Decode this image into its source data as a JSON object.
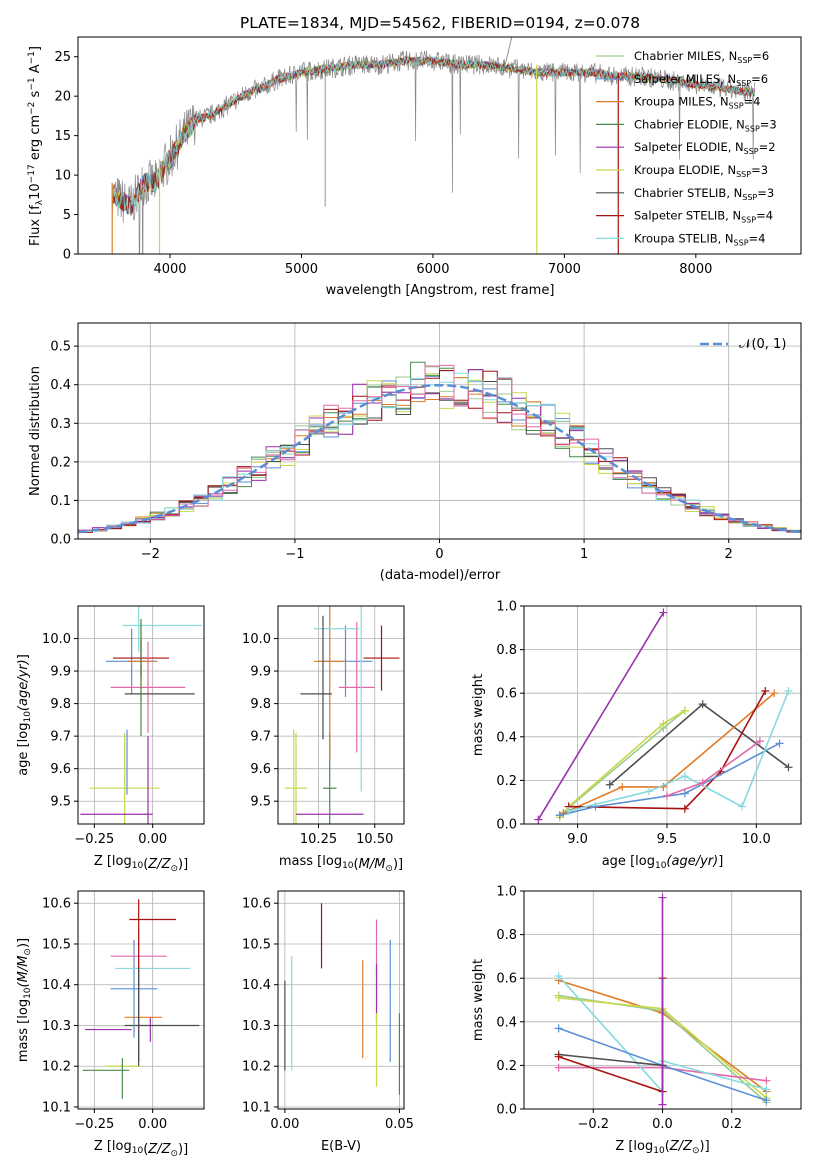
{
  "colors": {
    "c1": "#9ccb8c",
    "c2": "#5a8fd6",
    "c3": "#e07b27",
    "c4": "#4a8a4a",
    "c5": "#9b2fae",
    "c6": "#c8d84a",
    "c7": "#4d4d4d",
    "c8": "#a81010",
    "c9": "#86dadc",
    "pink": "#e06aa8",
    "lime": "#b8e05a",
    "gaussian": "#5a8fd6"
  },
  "chart_data": [
    {
      "id": "spectrum",
      "type": "line",
      "title": "PLATE=1834, MJD=54562, FIBERID=0194, z=0.078",
      "xlabel": "wavelength [Angstrom, rest frame]",
      "ylabel": "Flux [f$_\\lambda$10$^{-17}$ erg cm$^{-2}$ s$^{-1}$ A$^{-1}$]",
      "ylabel_main": "Flux [f",
      "ylabel_sub": "λ",
      "ylabel_rest": "10",
      "ylabel_sup1": "−17",
      "ylabel_mid": " erg cm",
      "ylabel_sup2": "−2",
      "ylabel_mid2": " s",
      "ylabel_sup3": "−1",
      "ylabel_mid3": " A",
      "ylabel_sup4": "−1",
      "ylabel_end": "]",
      "xlim": [
        3300,
        8800
      ],
      "ylim": [
        0,
        27.5
      ],
      "xticks": [
        4000,
        5000,
        6000,
        7000,
        8000
      ],
      "yticks": [
        0,
        5,
        10,
        15,
        20,
        25
      ],
      "continuum": [
        [
          3560,
          7.5
        ],
        [
          3700,
          6
        ],
        [
          3800,
          9
        ],
        [
          3900,
          9
        ],
        [
          3950,
          11
        ],
        [
          4000,
          12
        ],
        [
          4100,
          15
        ],
        [
          4200,
          17
        ],
        [
          4300,
          17.5
        ],
        [
          4400,
          18.5
        ],
        [
          4500,
          19.5
        ],
        [
          4600,
          20.5
        ],
        [
          4700,
          21
        ],
        [
          4800,
          22
        ],
        [
          4900,
          22.5
        ],
        [
          5000,
          23
        ],
        [
          5200,
          23.5
        ],
        [
          5400,
          24
        ],
        [
          5600,
          24
        ],
        [
          5800,
          24.5
        ],
        [
          6000,
          24.5
        ],
        [
          6200,
          24
        ],
        [
          6400,
          24
        ],
        [
          6600,
          23.5
        ],
        [
          6800,
          23
        ],
        [
          7000,
          23
        ],
        [
          7200,
          23
        ],
        [
          7400,
          22.5
        ],
        [
          7600,
          22.5
        ],
        [
          7800,
          22
        ],
        [
          8000,
          21.5
        ],
        [
          8200,
          21
        ],
        [
          8400,
          20.5
        ]
      ],
      "legend": [
        {
          "name": "Chabrier MILES, N",
          "sub": "SSP",
          "val": "=6",
          "color": "#9ccb8c"
        },
        {
          "name": "Salpeter MILES, N",
          "sub": "SSP",
          "val": "=6",
          "color": "#5a8fd6"
        },
        {
          "name": "Kroupa MILES, N",
          "sub": "SSP",
          "val": "=4",
          "color": "#e07b27"
        },
        {
          "name": "Chabrier ELODIE, N",
          "sub": "SSP",
          "val": "=3",
          "color": "#4a8a4a"
        },
        {
          "name": "Salpeter ELODIE, N",
          "sub": "SSP",
          "val": "=2",
          "color": "#9b2fae"
        },
        {
          "name": "Kroupa ELODIE, N",
          "sub": "SSP",
          "val": "=3",
          "color": "#c8d84a"
        },
        {
          "name": "Chabrier STELIB, N",
          "sub": "SSP",
          "val": "=3",
          "color": "#4d4d4d"
        },
        {
          "name": "Salpeter STELIB, N",
          "sub": "SSP",
          "val": "=4",
          "color": "#a81010"
        },
        {
          "name": "Kroupa STELIB, N",
          "sub": "SSP",
          "val": "=4",
          "color": "#86dadc"
        }
      ]
    },
    {
      "id": "residuals",
      "type": "line",
      "xlabel": "(data-model)/error",
      "ylabel": "Normed distribution",
      "xlim": [
        -2.5,
        2.5
      ],
      "ylim": [
        0,
        0.56
      ],
      "xticks": [
        -2,
        -1,
        0,
        1,
        2
      ],
      "xtick_labels": [
        "−2",
        "−1",
        "0",
        "1",
        "2"
      ],
      "yticks": [
        0.0,
        0.1,
        0.2,
        0.3,
        0.4,
        0.5
      ],
      "ytick_labels": [
        "0.0",
        "0.1",
        "0.2",
        "0.3",
        "0.4",
        "0.5"
      ],
      "legend": "𝒩(0, 1)"
    },
    {
      "id": "age_vs_Z",
      "type": "scatter",
      "xlabel": "Z [log$_{10}$(Z/Z$_\\odot$)]",
      "xlabel_text": "Z [log",
      "ylabel_text": "age  [log",
      "xlim": [
        -0.32,
        0.22
      ],
      "ylim": [
        9.43,
        10.1
      ],
      "xticks": [
        -0.25,
        0.0
      ],
      "xtick_labels": [
        "−0.25",
        "0.00"
      ],
      "yticks": [
        9.5,
        9.6,
        9.7,
        9.8,
        9.9,
        10.0
      ],
      "ytick_labels": [
        "9.5",
        "9.6",
        "9.7",
        "9.8",
        "9.9",
        "10.0"
      ],
      "points": [
        {
          "x": -0.12,
          "y": 9.54,
          "xerr": 0.15,
          "yerr": 0.17,
          "color": "#c8d84a"
        },
        {
          "x": -0.17,
          "y": 9.46,
          "xerr": 0.14,
          "yerr": 0.0,
          "color": "#9b2fae"
        },
        {
          "x": -0.02,
          "y": 9.46,
          "xerr": 0.02,
          "yerr": 0.24,
          "color": "#9b2fae"
        },
        {
          "x": -0.09,
          "y": 9.93,
          "xerr": 0.11,
          "yerr": 0.1,
          "color": "#5a8fd6"
        },
        {
          "x": -0.05,
          "y": 9.93,
          "xerr": 0.06,
          "yerr": 0.12,
          "color": "#e07b27"
        },
        {
          "x": -0.05,
          "y": 9.94,
          "xerr": 0.12,
          "yerr": 0.06,
          "color": "#a81010"
        },
        {
          "x": -0.02,
          "y": 9.85,
          "xerr": 0.16,
          "yerr": 0.14,
          "color": "#e06aa8"
        },
        {
          "x": 0.04,
          "y": 10.04,
          "xerr": 0.17,
          "yerr": 0.0,
          "color": "#86dadc"
        },
        {
          "x": -0.06,
          "y": 10.03,
          "xerr": 0.0,
          "yerr": 0.07,
          "color": "#86dadc"
        },
        {
          "x": 0.03,
          "y": 9.83,
          "xerr": 0.15,
          "yerr": 0.0,
          "color": "#4d4d4d"
        },
        {
          "x": -0.05,
          "y": 9.88,
          "xerr": 0.0,
          "yerr": 0.18,
          "color": "#4a8a4a"
        },
        {
          "x": -0.11,
          "y": 9.62,
          "xerr": 0.0,
          "yerr": 0.1,
          "color": "#5a8fd6"
        }
      ]
    },
    {
      "id": "age_vs_mass",
      "type": "scatter",
      "xlabel_text": "mass [log",
      "xlim": [
        10.07,
        10.63
      ],
      "ylim": [
        9.43,
        10.1
      ],
      "xticks": [
        10.25,
        10.5
      ],
      "xtick_labels": [
        "10.25",
        "10.50"
      ],
      "yticks": [
        9.5,
        9.6,
        9.7,
        9.8,
        9.9,
        10.0
      ],
      "ytick_labels": [
        "9.5",
        "9.6",
        "9.7",
        "9.8",
        "9.9",
        "10.0"
      ],
      "points": [
        {
          "x": 10.15,
          "y": 9.54,
          "xerr": 0.05,
          "yerr": 0.17,
          "color": "#c8d84a"
        },
        {
          "x": 10.3,
          "y": 9.46,
          "xerr": 0.15,
          "yerr": 0.0,
          "color": "#9b2fae"
        },
        {
          "x": 10.3,
          "y": 9.54,
          "xerr": 0.03,
          "yerr": 0.17,
          "color": "#4a8a4a"
        },
        {
          "x": 10.37,
          "y": 9.93,
          "xerr": 0.12,
          "yerr": 0.11,
          "color": "#5a8fd6"
        },
        {
          "x": 10.3,
          "y": 9.93,
          "xerr": 0.07,
          "yerr": 0.3,
          "color": "#e07b27"
        },
        {
          "x": 10.53,
          "y": 9.94,
          "xerr": 0.08,
          "yerr": 0.1,
          "color": "#a81010"
        },
        {
          "x": 10.42,
          "y": 9.85,
          "xerr": 0.08,
          "yerr": 0.2,
          "color": "#e06aa8"
        },
        {
          "x": 10.33,
          "y": 10.03,
          "xerr": 0.1,
          "yerr": 0.0,
          "color": "#86dadc"
        },
        {
          "x": 10.44,
          "y": 9.83,
          "xerr": 0.0,
          "yerr": 0.3,
          "color": "#86dadc"
        },
        {
          "x": 10.24,
          "y": 9.83,
          "xerr": 0.07,
          "yerr": 0.0,
          "color": "#4d4d4d"
        },
        {
          "x": 10.27,
          "y": 9.88,
          "xerr": 0.0,
          "yerr": 0.19,
          "color": "#4d4d4d"
        },
        {
          "x": 10.14,
          "y": 9.5,
          "xerr": 0.0,
          "yerr": 0.22,
          "color": "#b8e05a"
        }
      ]
    },
    {
      "id": "weight_vs_age",
      "type": "line",
      "xlabel_text": "age  [log",
      "ylabel": "mass weight",
      "xlim": [
        8.7,
        10.25
      ],
      "ylim": [
        0,
        1.0
      ],
      "xticks": [
        9.0,
        9.5,
        10.0
      ],
      "xtick_labels": [
        "9.0",
        "9.5",
        "10.0"
      ],
      "yticks": [
        0.0,
        0.2,
        0.4,
        0.6,
        0.8,
        1.0
      ],
      "ytick_labels": [
        "0.0",
        "0.2",
        "0.4",
        "0.6",
        "0.8",
        "1.0"
      ],
      "series": [
        {
          "color": "#9b2fae",
          "x": [
            8.78,
            9.48
          ],
          "y": [
            0.02,
            0.97
          ]
        },
        {
          "color": "#9ccb8c",
          "x": [
            8.9,
            9.48,
            9.6
          ],
          "y": [
            0.04,
            0.44,
            0.52
          ]
        },
        {
          "color": "#c8d84a",
          "x": [
            8.9,
            8.95,
            9.48,
            9.6
          ],
          "y": [
            0.03,
            0.08,
            0.46,
            0.52
          ]
        },
        {
          "color": "#4d4d4d",
          "x": [
            9.18,
            9.7,
            10.18
          ],
          "y": [
            0.18,
            0.55,
            0.26
          ]
        },
        {
          "color": "#e07b27",
          "x": [
            8.92,
            9.25,
            9.48,
            10.1
          ],
          "y": [
            0.05,
            0.17,
            0.17,
            0.6
          ]
        },
        {
          "color": "#a81010",
          "x": [
            8.95,
            9.6,
            9.8,
            10.05
          ],
          "y": [
            0.08,
            0.07,
            0.24,
            0.61
          ]
        },
        {
          "color": "#5a8fd6",
          "x": [
            8.9,
            9.1,
            9.6,
            10.13
          ],
          "y": [
            0.04,
            0.08,
            0.14,
            0.37
          ]
        },
        {
          "color": "#86dadc",
          "x": [
            8.95,
            9.4,
            9.6,
            9.92,
            10.18
          ],
          "y": [
            0.06,
            0.15,
            0.22,
            0.08,
            0.61
          ]
        },
        {
          "color": "#e06aa8",
          "x": [
            9.5,
            9.7,
            10.02
          ],
          "y": [
            0.13,
            0.19,
            0.38
          ]
        }
      ]
    },
    {
      "id": "mass_vs_Z",
      "type": "scatter",
      "xlabel_text": "Z [log",
      "ylabel_text": "mass [log",
      "xlim": [
        -0.32,
        0.22
      ],
      "ylim": [
        10.095,
        10.63
      ],
      "xticks": [
        -0.25,
        0.0
      ],
      "xtick_labels": [
        "−0.25",
        "0.00"
      ],
      "yticks": [
        10.1,
        10.2,
        10.3,
        10.4,
        10.5,
        10.6
      ],
      "ytick_labels": [
        "10.1",
        "10.2",
        "10.3",
        "10.4",
        "10.5",
        "10.6"
      ],
      "points": [
        {
          "x": -0.2,
          "y": 10.19,
          "xerr": 0.1,
          "yerr": 0.0,
          "color": "#4a8a4a"
        },
        {
          "x": -0.13,
          "y": 10.2,
          "xerr": 0.07,
          "yerr": 0.0,
          "color": "#c8d84a"
        },
        {
          "x": -0.13,
          "y": 10.17,
          "xerr": 0.0,
          "yerr": 0.05,
          "color": "#4a8a4a"
        },
        {
          "x": -0.19,
          "y": 10.29,
          "xerr": 0.1,
          "yerr": 0.0,
          "color": "#9b2fae"
        },
        {
          "x": -0.01,
          "y": 10.29,
          "xerr": 0.0,
          "yerr": 0.03,
          "color": "#9b2fae"
        },
        {
          "x": 0.04,
          "y": 10.3,
          "xerr": 0.16,
          "yerr": 0.0,
          "color": "#4d4d4d"
        },
        {
          "x": -0.04,
          "y": 10.32,
          "xerr": 0.08,
          "yerr": 0.0,
          "color": "#e07b27"
        },
        {
          "x": -0.08,
          "y": 10.39,
          "xerr": 0.1,
          "yerr": 0.12,
          "color": "#5a8fd6"
        },
        {
          "x": -0.06,
          "y": 10.47,
          "xerr": 0.12,
          "yerr": 0.07,
          "color": "#e06aa8"
        },
        {
          "x": 0.0,
          "y": 10.44,
          "xerr": 0.16,
          "yerr": 0.0,
          "color": "#86dadc"
        },
        {
          "x": 0.0,
          "y": 10.56,
          "xerr": 0.1,
          "yerr": 0.0,
          "color": "#a81010"
        },
        {
          "x": -0.06,
          "y": 10.41,
          "xerr": 0.0,
          "yerr": 0.2,
          "color": "#a81010"
        },
        {
          "x": -0.06,
          "y": 10.32,
          "xerr": 0.0,
          "yerr": 0.12,
          "color": "#4d4d4d"
        }
      ]
    },
    {
      "id": "mass_vs_ebv",
      "type": "scatter",
      "xlabel": "E(B-V)",
      "xlim": [
        -0.003,
        0.052
      ],
      "ylim": [
        10.095,
        10.63
      ],
      "xticks": [
        0.0,
        0.05
      ],
      "xtick_labels": [
        "0.00",
        "0.05"
      ],
      "yticks": [
        10.1,
        10.2,
        10.3,
        10.4,
        10.5,
        10.6
      ],
      "ytick_labels": [
        "10.1",
        "10.2",
        "10.3",
        "10.4",
        "10.5",
        "10.6"
      ],
      "points": [
        {
          "x": 0.0,
          "y": 10.3,
          "yerr": 0.11,
          "color": "#4d4d4d"
        },
        {
          "x": 0.003,
          "y": 10.33,
          "yerr": 0.14,
          "color": "#86dadc"
        },
        {
          "x": 0.016,
          "y": 10.52,
          "yerr": 0.08,
          "color": "#a81010"
        },
        {
          "x": 0.034,
          "y": 10.34,
          "yerr": 0.12,
          "color": "#e07b27"
        },
        {
          "x": 0.04,
          "y": 10.49,
          "yerr": 0.07,
          "color": "#e06aa8"
        },
        {
          "x": 0.04,
          "y": 10.38,
          "yerr": 0.07,
          "color": "#9b2fae"
        },
        {
          "x": 0.04,
          "y": 10.24,
          "yerr": 0.09,
          "color": "#c8d84a"
        },
        {
          "x": 0.046,
          "y": 10.36,
          "yerr": 0.15,
          "color": "#5a8fd6"
        },
        {
          "x": 0.05,
          "y": 10.23,
          "yerr": 0.1,
          "color": "#4a8a4a"
        }
      ]
    },
    {
      "id": "weight_vs_Z",
      "type": "line",
      "xlabel_text": "Z [log",
      "ylabel": "mass weight",
      "xlim": [
        -0.4,
        0.4
      ],
      "ylim": [
        0,
        1.0
      ],
      "xticks": [
        -0.2,
        0.0,
        0.2
      ],
      "xtick_labels": [
        "−0.2",
        "0.0",
        "0.2"
      ],
      "yticks": [
        0.0,
        0.2,
        0.4,
        0.6,
        0.8,
        1.0
      ],
      "ytick_labels": [
        "0.0",
        "0.2",
        "0.4",
        "0.6",
        "0.8",
        "1.0"
      ],
      "series": [
        {
          "color": "#e07b27",
          "x": [
            -0.3,
            0.0,
            0.3
          ],
          "y": [
            0.59,
            0.44,
            0.08
          ]
        },
        {
          "color": "#9ccb8c",
          "x": [
            -0.3,
            0.0,
            0.3
          ],
          "y": [
            0.52,
            0.45,
            0.03
          ]
        },
        {
          "color": "#c8d84a",
          "x": [
            -0.3,
            0.0,
            0.3
          ],
          "y": [
            0.51,
            0.46,
            0.05
          ]
        },
        {
          "color": "#e06aa8",
          "x": [
            -0.3,
            0.0,
            0.3
          ],
          "y": [
            0.19,
            0.19,
            0.13
          ]
        },
        {
          "color": "#86dadc",
          "x": [
            -0.3,
            0.0,
            0.0,
            0.3
          ],
          "y": [
            0.61,
            0.08,
            0.22,
            0.09
          ]
        },
        {
          "color": "#5a8fd6",
          "x": [
            -0.3,
            0.0,
            0.3
          ],
          "y": [
            0.37,
            0.2,
            0.04
          ]
        },
        {
          "color": "#4d4d4d",
          "x": [
            -0.3,
            0.0
          ],
          "y": [
            0.25,
            0.2
          ]
        },
        {
          "color": "#a81010",
          "x": [
            -0.3,
            0.0,
            0.0
          ],
          "y": [
            0.24,
            0.08,
            0.6
          ]
        },
        {
          "color": "#9b2fae",
          "x": [
            0.0,
            0.0
          ],
          "y": [
            0.02,
            0.97
          ]
        }
      ]
    }
  ]
}
